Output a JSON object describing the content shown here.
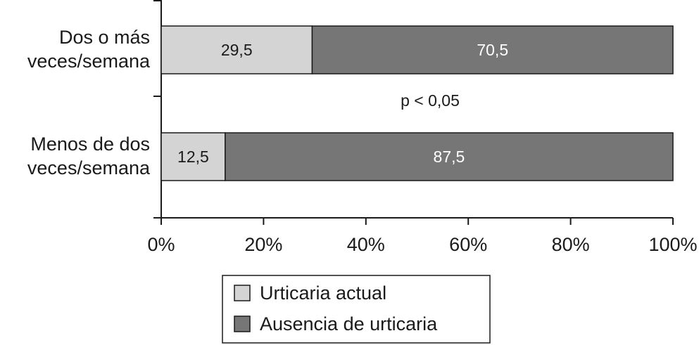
{
  "chart_data": {
    "type": "bar",
    "orientation": "horizontal",
    "stacked": true,
    "categories": [
      [
        "Dos o más",
        "veces/semana"
      ],
      [
        "Menos de dos",
        "veces/semana"
      ]
    ],
    "series": [
      {
        "name": "Urticaria actual",
        "values": [
          29.5,
          12.5
        ],
        "labels": [
          "29,5",
          "12,5"
        ],
        "color": "#d4d4d4",
        "label_color": "#1a1a1a"
      },
      {
        "name": "Ausencia de urticaria",
        "values": [
          70.5,
          87.5
        ],
        "labels": [
          "70,5",
          "87,5"
        ],
        "color": "#767676",
        "label_color": "#ffffff"
      }
    ],
    "xlim": [
      0,
      100
    ],
    "xticks": [
      0,
      20,
      40,
      60,
      80,
      100
    ],
    "xtick_labels": [
      "0%",
      "20%",
      "40%",
      "60%",
      "80%",
      "100%"
    ],
    "annotation": "p < 0,05",
    "grid": false,
    "legend_position": "bottom-center"
  }
}
